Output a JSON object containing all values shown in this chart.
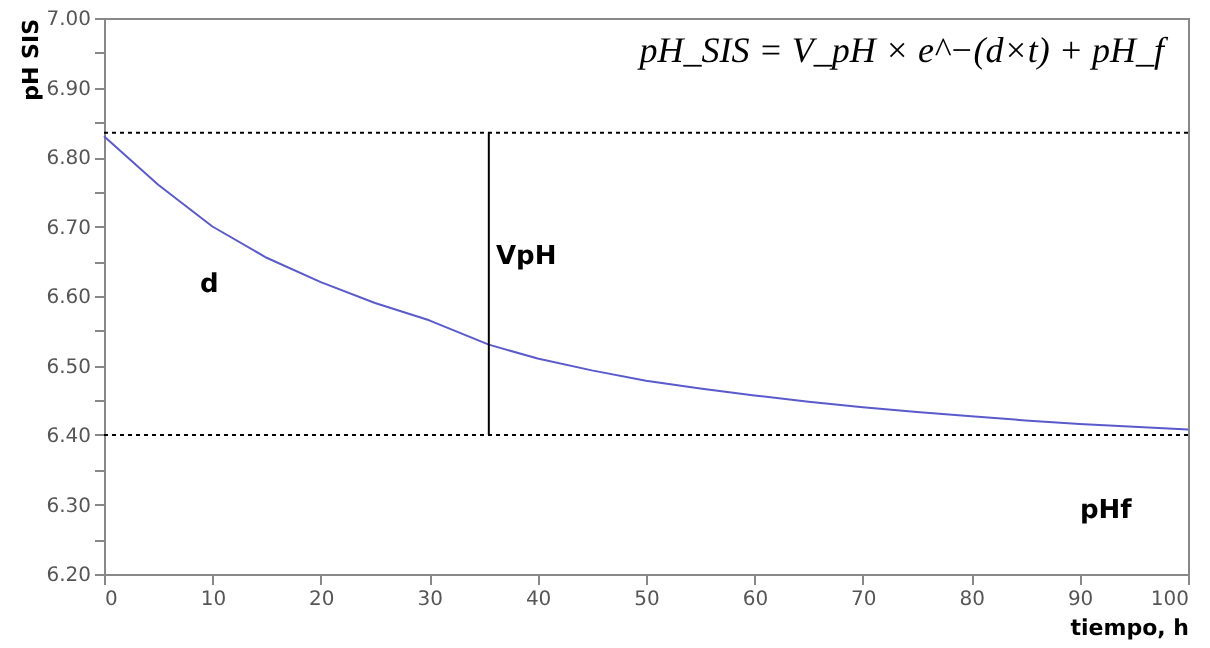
{
  "chart_data": {
    "type": "line",
    "xlabel": "tiempo, h",
    "ylabel": "pH SIS",
    "x": [
      0,
      5,
      10,
      15,
      20,
      25,
      30,
      35.5,
      40,
      45,
      50,
      55,
      60,
      65,
      70,
      75,
      80,
      85,
      90,
      95,
      100
    ],
    "series": [
      {
        "color": "#5a5acd",
        "values": [
          6.83,
          6.76,
          6.7,
          6.655,
          6.62,
          6.59,
          6.565,
          6.53,
          6.51,
          6.493,
          6.478,
          6.467,
          6.457,
          6.448,
          6.44,
          6.433,
          6.427,
          6.421,
          6.416,
          6.412,
          6.408
        ]
      },
      {
        "type": "line",
        "color": "#000000",
        "x": [
          35.5,
          35.5
        ],
        "values": [
          6.4,
          6.835
        ]
      }
    ],
    "ref_lines": [
      {
        "axis": "y",
        "value": 6.835,
        "color": "#000000",
        "line_style": "dotted"
      },
      {
        "axis": "y",
        "value": 6.4,
        "color": "#000000",
        "line_style": "dotted"
      }
    ],
    "annotations": [
      "pH_SIS = V_pH × e^−(d×t) + pH_f",
      "d",
      "VpH",
      "pHf"
    ],
    "xlim": [
      0,
      100
    ],
    "xticks": [
      0,
      10,
      20,
      30,
      40,
      50,
      60,
      70,
      80,
      90,
      100
    ],
    "ylim": [
      6.2,
      7.0
    ],
    "yticks": [
      {
        "value": 6.2,
        "label": "6.20"
      },
      {
        "value": 6.25,
        "label": null
      },
      {
        "value": 6.3,
        "label": "6.30"
      },
      {
        "value": 6.35,
        "label": null
      },
      {
        "value": 6.4,
        "label": "6.40"
      },
      {
        "value": 6.45,
        "label": null
      },
      {
        "value": 6.5,
        "label": "6.50"
      },
      {
        "value": 6.55,
        "label": null
      },
      {
        "value": 6.6,
        "label": "6.60"
      },
      {
        "value": 6.65,
        "label": null
      },
      {
        "value": 6.7,
        "label": "6.70"
      },
      {
        "value": 6.75,
        "label": null
      },
      {
        "value": 6.8,
        "label": "6.80"
      },
      {
        "value": 6.85,
        "label": null
      },
      {
        "value": 6.9,
        "label": "6.90"
      },
      {
        "value": 6.95,
        "label": null
      },
      {
        "value": 7.0,
        "label": "7.00"
      }
    ],
    "grid": false,
    "marker": "none",
    "line_style": "solid"
  }
}
